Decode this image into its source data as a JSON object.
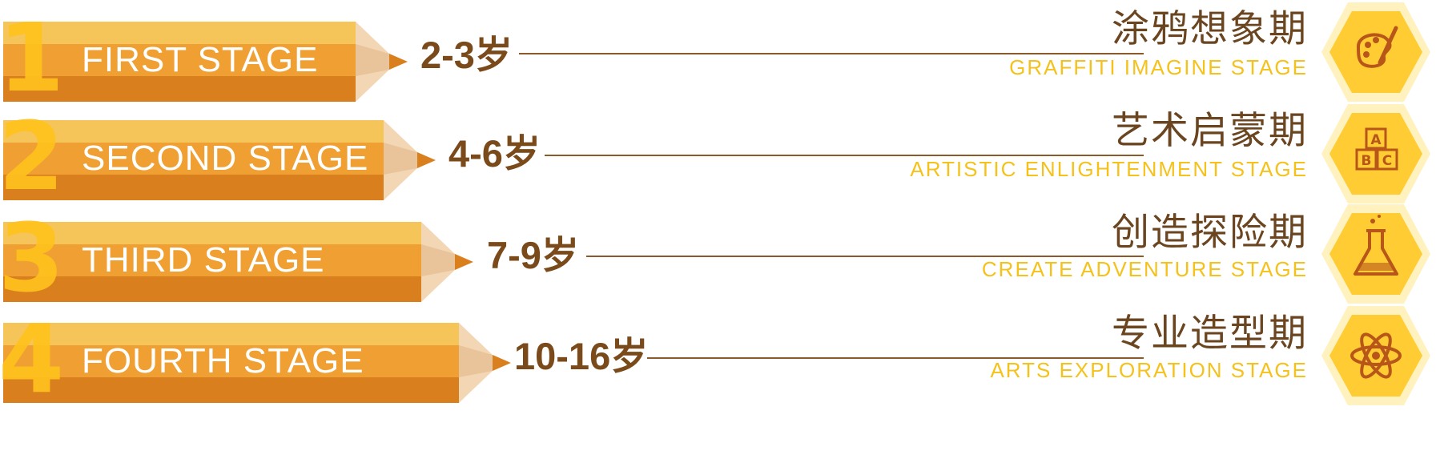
{
  "colors": {
    "pencil_top": "#f5c55a",
    "pencil_mid": "#f0a033",
    "pencil_bottom": "#d97f1e",
    "number": "#ffc21d",
    "age_text": "#7a4a1a",
    "cn_text": "#6a4520",
    "en_text": "#f5c21b",
    "hex_outer": "#fff2bf",
    "hex_inner": "#ffcc33",
    "icon": "#b8561a"
  },
  "stages": [
    {
      "number": "1",
      "label": "FIRST STAGE",
      "age": "2-3岁",
      "cn_name": "涂鸦想象期",
      "en_name": "GRAFFITI IMAGINE STAGE",
      "icon": "palette-icon"
    },
    {
      "number": "2",
      "label": "SECOND STAGE",
      "age": "4-6岁",
      "cn_name": "艺术启蒙期",
      "en_name": "ARTISTIC ENLIGHTENMENT STAGE",
      "icon": "abc-blocks-icon"
    },
    {
      "number": "3",
      "label": "THIRD STAGE",
      "age": "7-9岁",
      "cn_name": "创造探险期",
      "en_name": "CREATE ADVENTURE STAGE",
      "icon": "flask-icon"
    },
    {
      "number": "4",
      "label": "FOURTH STAGE",
      "age": "10-16岁",
      "cn_name": "专业造型期",
      "en_name": "ARTS EXPLORATION STAGE",
      "icon": "atom-icon"
    }
  ]
}
